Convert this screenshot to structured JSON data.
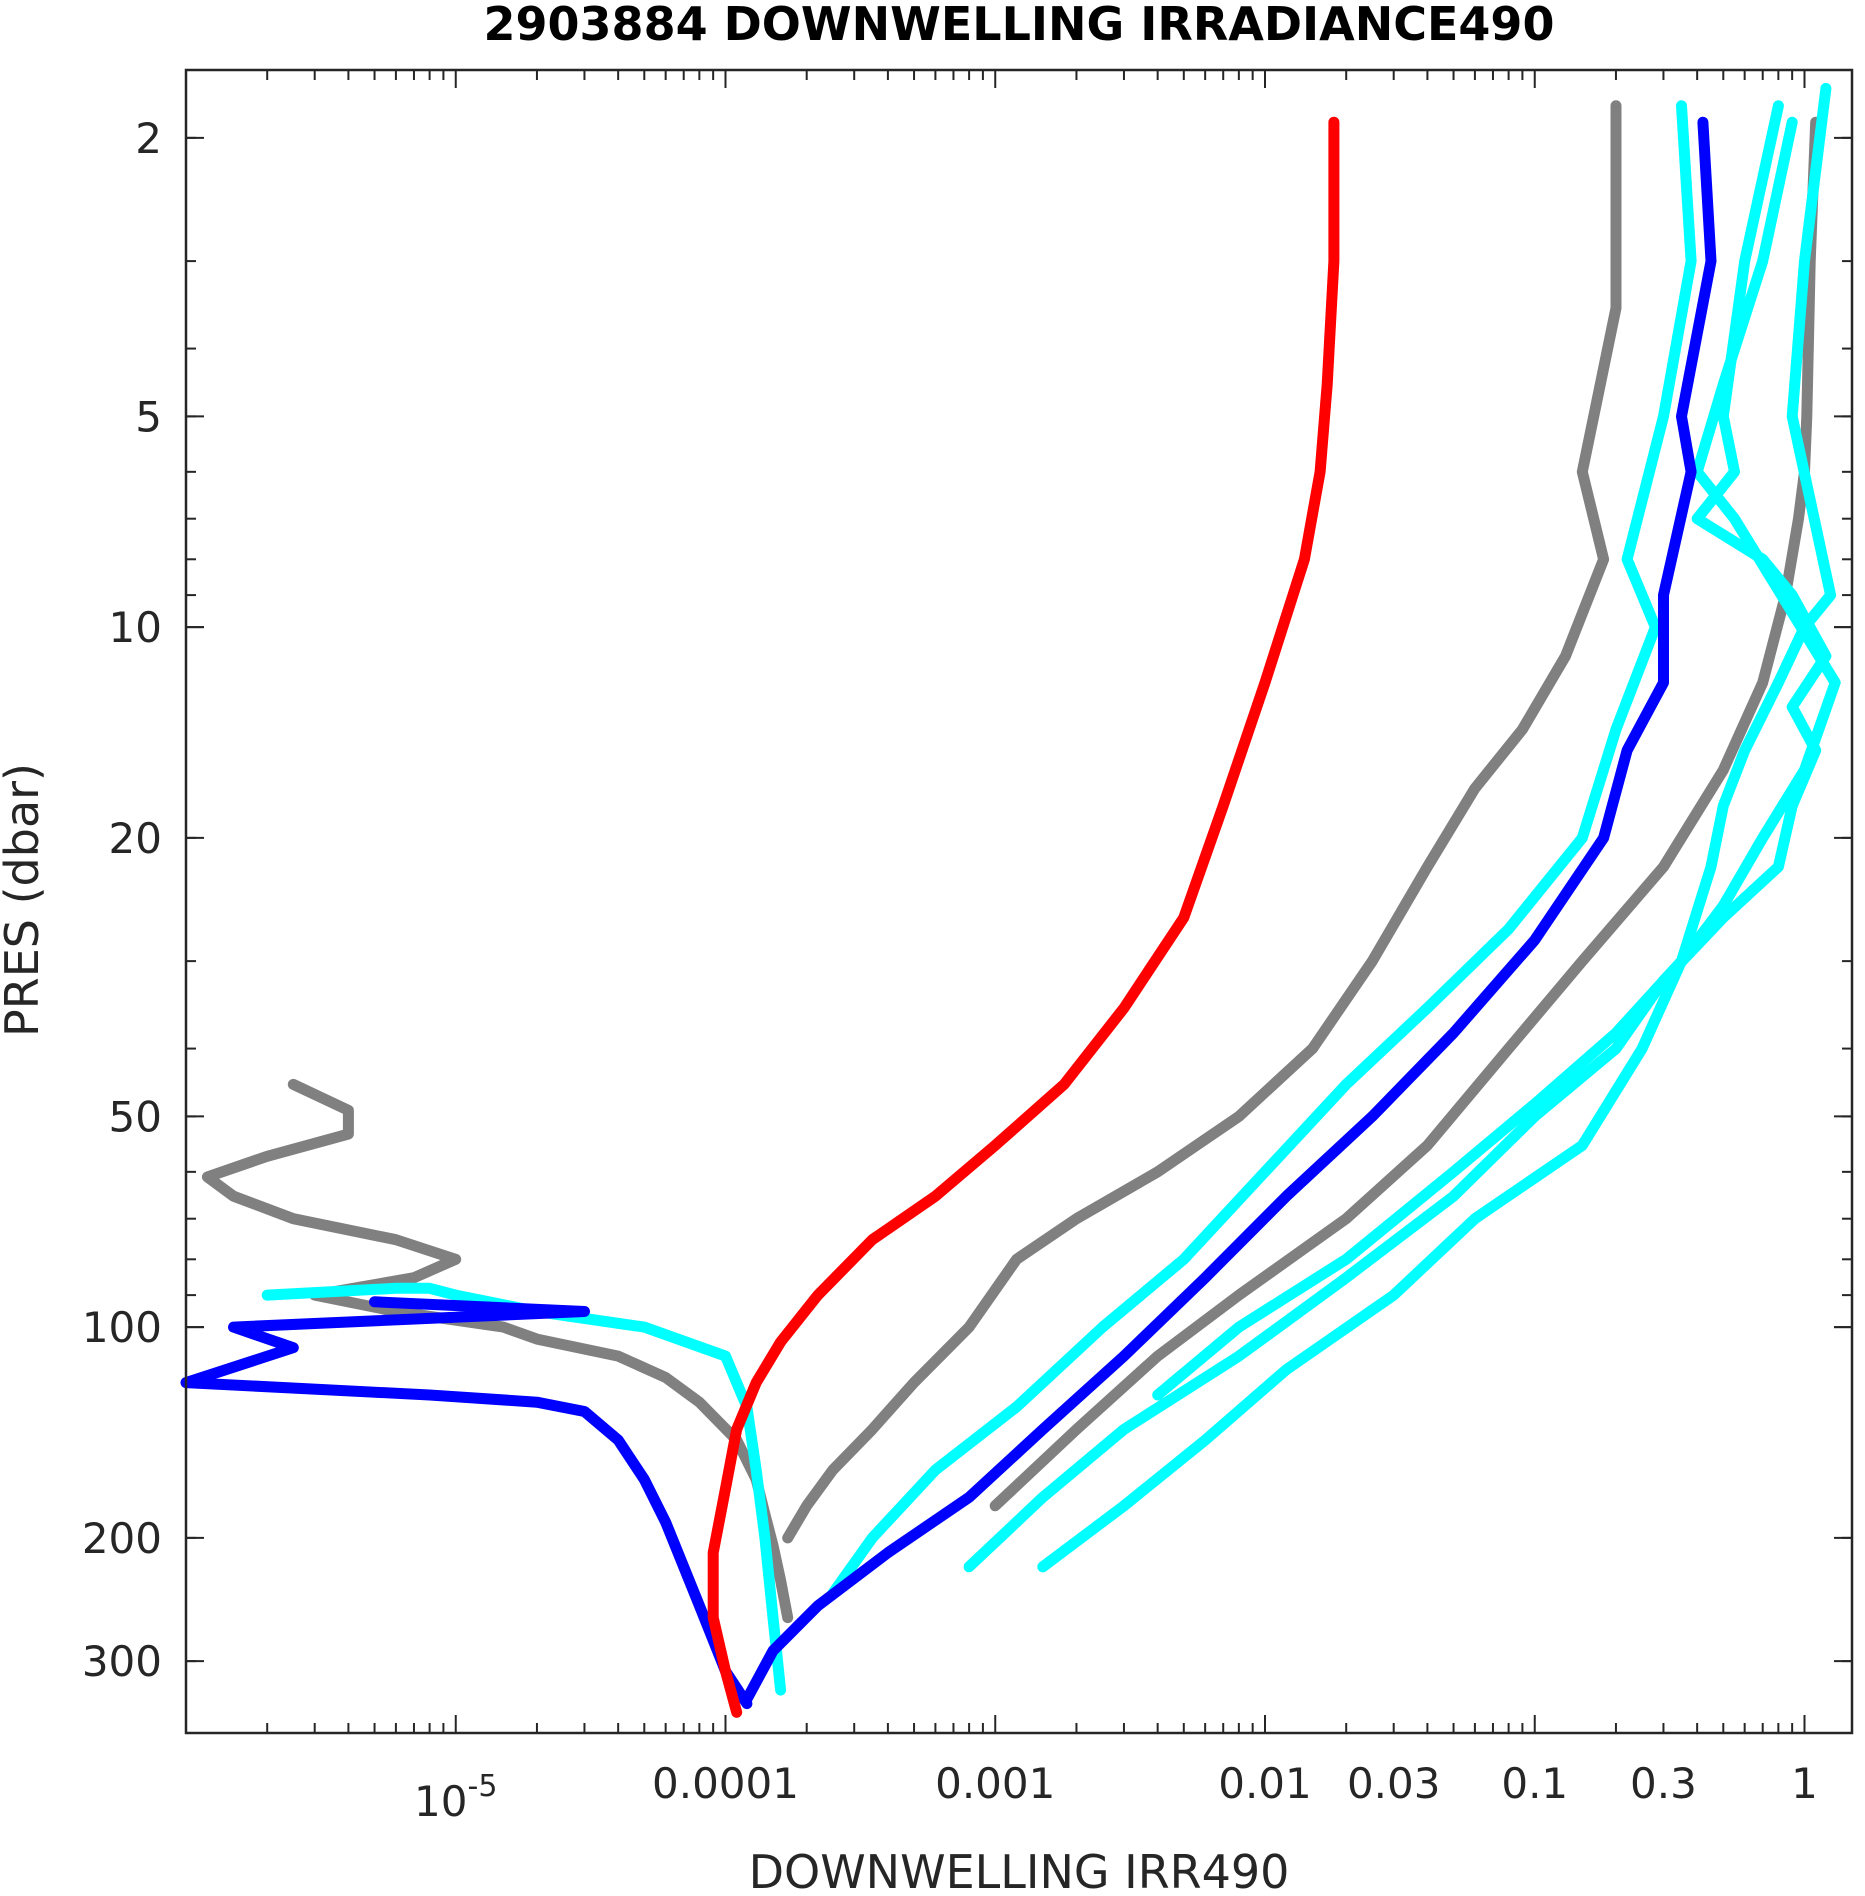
{
  "chart_data": {
    "type": "line",
    "title": "2903884  DOWNWELLING IRRADIANCE490",
    "xlabel": "DOWNWELLING IRR490",
    "ylabel": "PRES (dbar)",
    "xscale": "log",
    "yscale": "log",
    "y_inverted": true,
    "xlim": [
      1e-06,
      1.5
    ],
    "ylim": [
      1.6,
      380
    ],
    "x_ticks": [
      {
        "value": 1e-05,
        "label": "10",
        "exp": "-5"
      },
      {
        "value": 0.0001,
        "label": "0.0001"
      },
      {
        "value": 0.001,
        "label": "0.001"
      },
      {
        "value": 0.01,
        "label": "0.01"
      },
      {
        "value": 0.03,
        "label": "0.03"
      },
      {
        "value": 0.1,
        "label": "0.1"
      },
      {
        "value": 0.3,
        "label": "0.3"
      },
      {
        "value": 1,
        "label": "1"
      }
    ],
    "y_ticks": [
      {
        "value": 2,
        "label": "2"
      },
      {
        "value": 5,
        "label": "5"
      },
      {
        "value": 10,
        "label": "10"
      },
      {
        "value": 20,
        "label": "20"
      },
      {
        "value": 50,
        "label": "50"
      },
      {
        "value": 100,
        "label": "100"
      },
      {
        "value": 200,
        "label": "200"
      },
      {
        "value": 300,
        "label": "300"
      }
    ],
    "grid": false,
    "legend": "none",
    "series": [
      {
        "color": "#808080",
        "x": [
          2.5e-06,
          4e-06,
          4e-06,
          2e-06,
          1.2e-06,
          1.5e-06,
          2.5e-06,
          6e-06,
          1e-05,
          7e-06,
          3e-06,
          6e-06,
          1.5e-05,
          2e-05,
          4e-05,
          6e-05,
          8e-05,
          0.00011,
          0.00013,
          0.00014,
          0.00015,
          0.00016,
          0.00017
        ],
        "pres": [
          45,
          49,
          53,
          57,
          61,
          65,
          70,
          75,
          80,
          85,
          90,
          95,
          100,
          104,
          110,
          118,
          128,
          145,
          165,
          185,
          205,
          230,
          260
        ]
      },
      {
        "color": "#808080",
        "x": [
          0.2,
          0.2,
          0.2,
          0.15,
          0.18,
          0.13,
          0.09,
          0.06,
          0.04,
          0.025,
          0.015,
          0.008,
          0.004,
          0.002,
          0.0012,
          0.0008,
          0.0005,
          0.00035,
          0.00025,
          0.0002,
          0.00017
        ],
        "pres": [
          1.8,
          2,
          3.5,
          6,
          8,
          11,
          14,
          17,
          22,
          30,
          40,
          50,
          60,
          70,
          80,
          100,
          120,
          140,
          160,
          180,
          200
        ]
      },
      {
        "color": "#808080",
        "x": [
          1.1,
          1.05,
          1.02,
          1.0,
          0.95,
          0.85,
          0.7,
          0.5,
          0.3,
          0.15,
          0.08,
          0.04,
          0.02,
          0.008,
          0.004,
          0.002,
          0.001
        ],
        "pres": [
          1.9,
          3,
          5,
          6,
          7,
          9,
          12,
          16,
          22,
          30,
          40,
          55,
          70,
          90,
          110,
          140,
          180
        ]
      },
      {
        "color": "#00ffff",
        "x": [
          2e-06,
          6e-06,
          8e-06,
          1e-05,
          2e-05,
          5e-05,
          0.0001,
          0.00012,
          0.00013,
          0.00014,
          0.00015,
          0.00016
        ],
        "pres": [
          90,
          88,
          88,
          90,
          95,
          100,
          110,
          130,
          160,
          200,
          260,
          330
        ]
      },
      {
        "color": "#00ffff",
        "x": [
          0.35,
          0.38,
          0.3,
          0.22,
          0.28,
          0.2,
          0.15,
          0.08,
          0.04,
          0.02,
          0.01,
          0.005,
          0.0025,
          0.0012,
          0.0006,
          0.00035,
          0.00025
        ],
        "pres": [
          1.8,
          3,
          5,
          8,
          10,
          14,
          20,
          27,
          35,
          45,
          60,
          80,
          100,
          130,
          160,
          200,
          240
        ]
      },
      {
        "color": "#00ffff",
        "x": [
          0.8,
          0.6,
          0.5,
          0.55,
          0.4,
          0.7,
          0.9,
          1.2,
          0.9,
          1.1,
          0.9,
          0.8,
          0.5,
          0.3,
          0.2,
          0.1,
          0.05,
          0.02,
          0.008,
          0.003,
          0.0015,
          0.0008
        ],
        "pres": [
          1.8,
          3,
          5,
          6,
          7,
          8,
          9,
          11,
          13,
          15,
          18,
          22,
          26,
          32,
          40,
          50,
          65,
          85,
          110,
          140,
          175,
          220
        ]
      },
      {
        "color": "#00ffff",
        "x": [
          1.2,
          1.0,
          0.9,
          1.25,
          1.0,
          0.8,
          0.6,
          0.5,
          0.45,
          0.35,
          0.25,
          0.15,
          0.06,
          0.03,
          0.012,
          0.006,
          0.003,
          0.0015
        ],
        "pres": [
          1.7,
          3,
          5,
          9,
          10,
          12,
          15,
          18,
          22,
          30,
          40,
          55,
          70,
          90,
          115,
          145,
          180,
          220
        ]
      },
      {
        "color": "#00ffff",
        "x": [
          0.9,
          0.7,
          0.5,
          0.4,
          0.55,
          1.3,
          1.0,
          0.7,
          0.5,
          0.35,
          0.2,
          0.1,
          0.05,
          0.02,
          0.008,
          0.004
        ],
        "pres": [
          1.9,
          3,
          4.5,
          6,
          7,
          12,
          16,
          20,
          25,
          30,
          38,
          48,
          60,
          80,
          100,
          125
        ]
      },
      {
        "color": "#0000ff",
        "x": [
          0.42,
          0.45,
          0.35,
          0.38,
          0.3,
          0.3,
          0.22,
          0.18,
          0.1,
          0.05,
          0.025,
          0.012,
          0.006,
          0.003,
          0.0015,
          0.0008,
          0.0004,
          0.00022,
          0.00015,
          0.00012
        ],
        "pres": [
          1.9,
          3,
          5,
          6,
          9,
          12,
          15,
          20,
          28,
          38,
          50,
          65,
          85,
          110,
          140,
          175,
          210,
          250,
          290,
          340
        ]
      },
      {
        "color": "#0000ff",
        "x": [
          5e-06,
          3e-05,
          1.5e-06,
          2.5e-06,
          1e-06,
          8e-06,
          2e-05,
          3e-05,
          4e-05,
          5e-05,
          6e-05,
          7e-05,
          8e-05,
          9e-05,
          0.0001,
          0.00012
        ],
        "pres": [
          92,
          95,
          100,
          107,
          120,
          125,
          128,
          132,
          145,
          165,
          190,
          220,
          250,
          280,
          310,
          345
        ]
      },
      {
        "color": "#ff0000",
        "x": [
          0.018,
          0.018,
          0.017,
          0.016,
          0.014,
          0.01,
          0.007,
          0.005,
          0.003,
          0.0018,
          0.001,
          0.0006,
          0.00035,
          0.00022,
          0.00016,
          0.00013,
          0.00011,
          0.0001,
          9e-05,
          9e-05,
          0.0001,
          0.00011
        ],
        "pres": [
          1.9,
          3,
          4.5,
          6,
          8,
          12,
          18,
          26,
          35,
          45,
          55,
          65,
          75,
          90,
          105,
          120,
          140,
          170,
          210,
          260,
          310,
          355
        ]
      }
    ]
  }
}
